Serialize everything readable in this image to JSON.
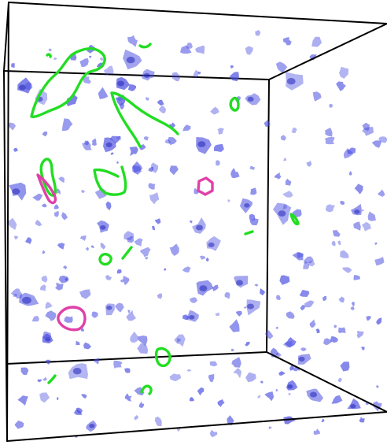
{
  "scene": {
    "colors": {
      "background": "#ffffff",
      "box_edges": "#000000",
      "isosurface": "#4a4ee0",
      "isosurface_dark": "#2226b8",
      "curve_green": "#22dd22",
      "curve_magenta": "#e040a8"
    },
    "isosurface_opacity": 0.72
  }
}
